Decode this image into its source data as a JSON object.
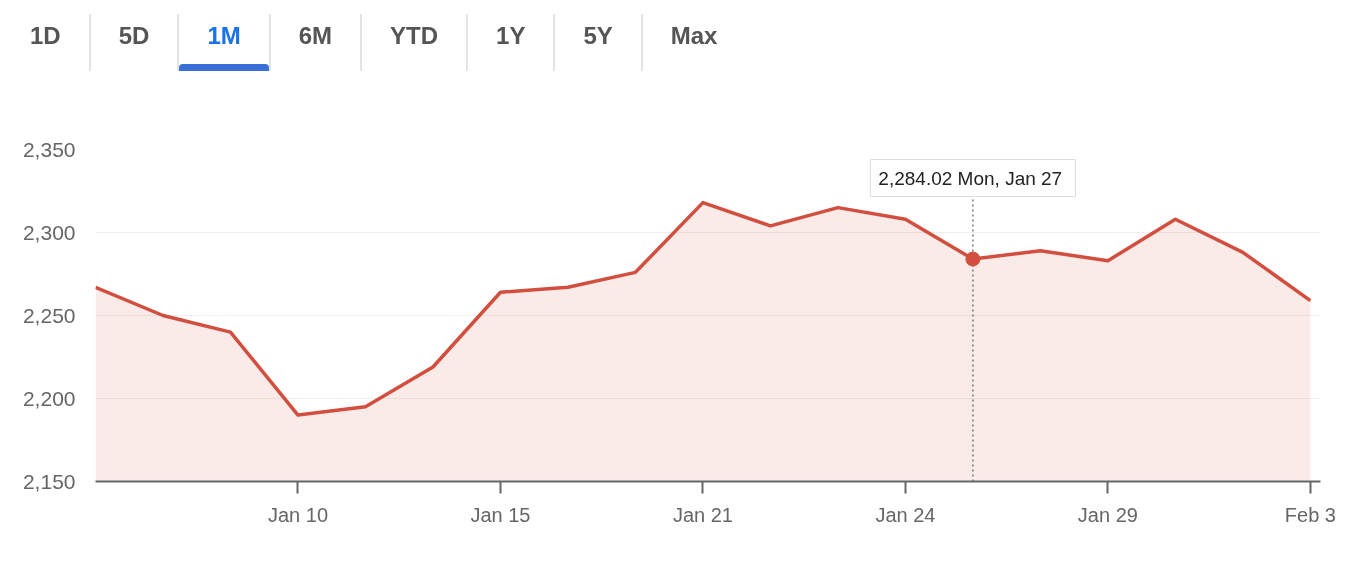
{
  "chart_data": {
    "type": "area",
    "color": "#d24f3f",
    "categories": [
      null,
      null,
      null,
      "Jan 10",
      null,
      null,
      "Jan 15",
      null,
      null,
      "Jan 21",
      null,
      null,
      "Jan 24",
      null,
      null,
      "Jan 29",
      null,
      null,
      "Feb 3"
    ],
    "values": [
      2267,
      2250,
      2240,
      2190,
      2195,
      2219,
      2264,
      2267,
      2276,
      2318,
      2304,
      2315,
      2308,
      2284.02,
      2289,
      2283,
      2308,
      2288,
      2259
    ],
    "ylim": [
      2150,
      2350
    ],
    "yticks": [
      {
        "value": 2150,
        "label": "2,150"
      },
      {
        "value": 2200,
        "label": "2,200"
      },
      {
        "value": 2250,
        "label": "2,250"
      },
      {
        "value": 2300,
        "label": "2,300"
      },
      {
        "value": 2350,
        "label": "2,350"
      }
    ],
    "grid": "y",
    "annotations": [
      "1D",
      "5D",
      "1M",
      "6M",
      "YTD",
      "1Y",
      "5Y",
      "Max",
      "2,284.02  Mon, Jan 27"
    ]
  }
}
